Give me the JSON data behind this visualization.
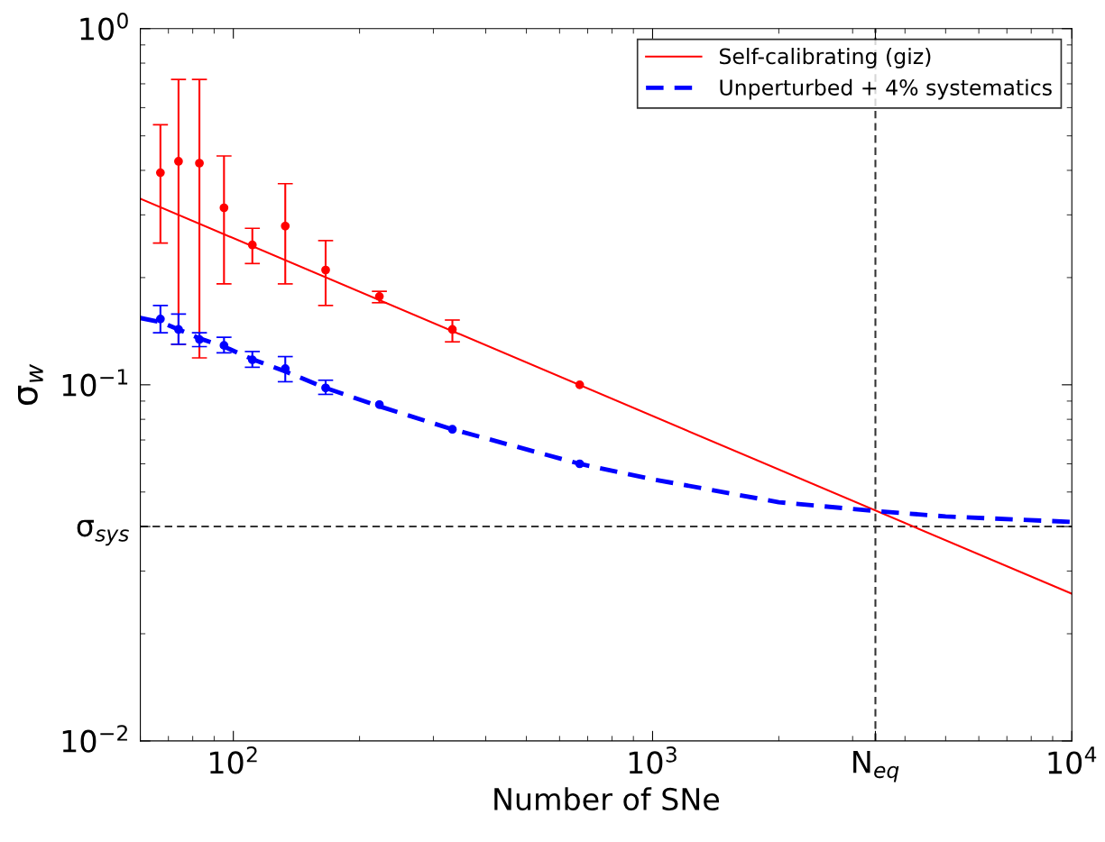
{
  "chart_data": {
    "type": "scatter",
    "xlabel": "Number of SNe",
    "ylabel": "σ$_{w}$",
    "log": "xy",
    "xlim": [
      60,
      10000
    ],
    "ylim": [
      0.01,
      1
    ],
    "xticks": [
      {
        "value": 100,
        "label": "10$^{2}$"
      },
      {
        "value": 1000,
        "label": "10$^{3}$"
      },
      {
        "value": 3400,
        "label": "N$_{eq}$"
      },
      {
        "value": 10000,
        "label": "10$^{4}$"
      }
    ],
    "yticks": [
      {
        "value": 0.01,
        "label": "10$^{−2}$"
      },
      {
        "value": 0.04,
        "label": "σ$_{sys}$"
      },
      {
        "value": 0.1,
        "label": "10$^{−1}$"
      },
      {
        "value": 1,
        "label": "10$^{0}$"
      }
    ],
    "grid": false,
    "legend": "top right",
    "ref_lines": [
      {
        "axis": "y",
        "value": 0.04,
        "color": "#333333",
        "line_style": "dashed"
      },
      {
        "axis": "x",
        "value": 3400,
        "color": "#333333",
        "line_style": "dashed"
      }
    ],
    "series": [
      {
        "type": "line",
        "name": "Self-calibrating (giz)",
        "color": "#ff0000",
        "line_style": "solid",
        "marker": "none",
        "x": [
          60,
          10000
        ],
        "values": [
          0.333,
          0.0259
        ]
      },
      {
        "type": "line",
        "name": "Unperturbed + 4% systematics",
        "color": "#0000ff",
        "line_style": "dashed",
        "marker": "none",
        "x": [
          60,
          67,
          74,
          83,
          95,
          111,
          133,
          166,
          223,
          333,
          670,
          1000,
          2000,
          3400,
          5000,
          10000
        ],
        "values": [
          0.154,
          0.15,
          0.143,
          0.135,
          0.128,
          0.118,
          0.109,
          0.098,
          0.087,
          0.075,
          0.06,
          0.0543,
          0.0468,
          0.0442,
          0.0427,
          0.0412
        ]
      },
      {
        "color": "#ff0000",
        "marker": "circle",
        "x": [
          67,
          74,
          83,
          95,
          111,
          133,
          166,
          223,
          333,
          670
        ],
        "values": [
          0.394,
          0.424,
          0.419,
          0.314,
          0.247,
          0.279,
          0.21,
          0.177,
          0.143,
          0.1
        ],
        "errors": [
          [
            0.25,
            0.537
          ],
          [
            0.13,
            0.72
          ],
          [
            0.119,
            0.72
          ],
          [
            0.192,
            0.439
          ],
          [
            0.219,
            0.275
          ],
          [
            0.192,
            0.367
          ],
          [
            0.167,
            0.254
          ],
          [
            0.17,
            0.183
          ],
          [
            0.132,
            0.152
          ],
          null
        ]
      },
      {
        "color": "#0000ff",
        "marker": "circle",
        "x": [
          67,
          74,
          83,
          95,
          111,
          133,
          166,
          223,
          333,
          670
        ],
        "values": [
          0.153,
          0.143,
          0.134,
          0.129,
          0.1175,
          0.111,
          0.098,
          0.088,
          0.075,
          0.06
        ],
        "errors": [
          [
            0.14,
            0.167
          ],
          [
            0.13,
            0.158
          ],
          [
            0.128,
            0.14
          ],
          [
            0.123,
            0.136
          ],
          [
            0.112,
            0.124
          ],
          [
            0.102,
            0.12
          ],
          [
            0.094,
            0.103
          ],
          null,
          null,
          null
        ]
      }
    ]
  }
}
